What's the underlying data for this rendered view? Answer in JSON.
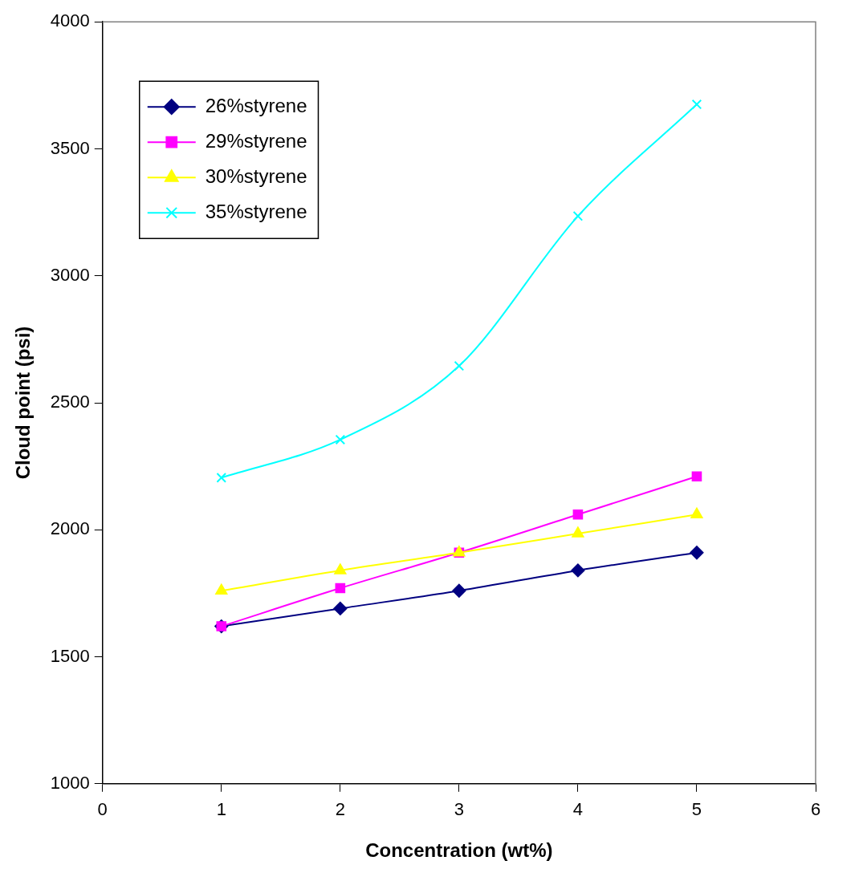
{
  "chart_data": {
    "type": "line",
    "xlabel": "Concentration (wt%)",
    "ylabel": "Cloud point (psi)",
    "x": [
      1,
      2,
      3,
      4,
      5
    ],
    "series": [
      {
        "name": "26%styrene",
        "color": "#000080",
        "marker": "diamond",
        "values": [
          1620,
          1690,
          1760,
          1840,
          1910
        ]
      },
      {
        "name": "29%styrene",
        "color": "#ff00ff",
        "marker": "square",
        "values": [
          1620,
          1770,
          1910,
          2060,
          2210
        ]
      },
      {
        "name": "30%styrene",
        "color": "#ffff00",
        "marker": "triangle",
        "values": [
          1760,
          1840,
          1910,
          1985,
          2060
        ]
      },
      {
        "name": "35%styrene",
        "color": "#00ffff",
        "marker": "cross",
        "values": [
          2205,
          2355,
          2645,
          3235,
          3675
        ]
      }
    ],
    "xlim": [
      0,
      6
    ],
    "xticks": [
      0,
      1,
      2,
      3,
      4,
      5,
      6
    ],
    "ylim": [
      1000,
      4000
    ],
    "yticks": [
      1000,
      1500,
      2000,
      2500,
      3000,
      3500,
      4000
    ],
    "grid": false,
    "legend": "top left"
  }
}
